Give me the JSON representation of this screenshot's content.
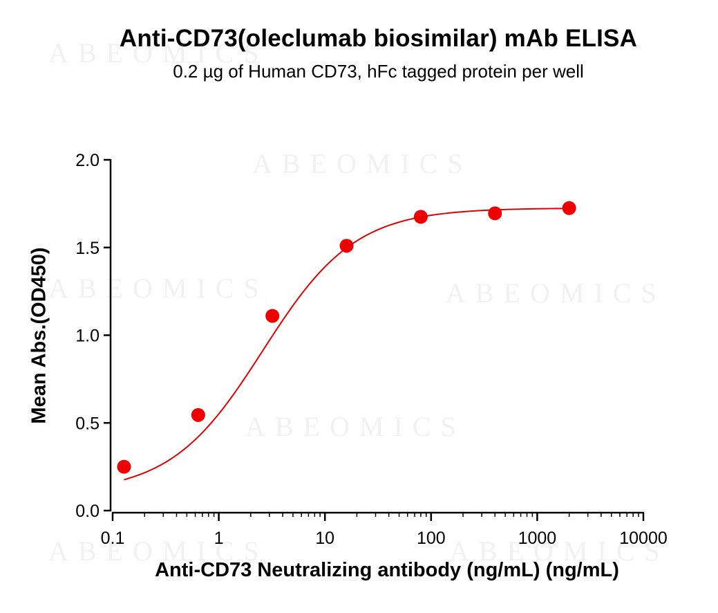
{
  "watermark_text": "ABEOMICS",
  "chart_data": {
    "type": "scatter",
    "title": "Anti-CD73(oleclumab biosimilar) mAb ELISA",
    "subtitle": "0.2 µg of Human CD73, hFc tagged protein per well",
    "xlabel": "Anti-CD73 Neutralizing antibody (ng/mL) (ng/mL)",
    "ylabel": "Mean Abs.(OD450)",
    "x_scale": "log",
    "xlim": [
      0.1,
      10000
    ],
    "ylim": [
      0.0,
      2.0
    ],
    "x_ticks": [
      0.1,
      1,
      10,
      100,
      1000,
      10000
    ],
    "x_tick_labels": [
      "0.1",
      "1",
      "10",
      "100",
      "1000",
      "10000"
    ],
    "y_ticks": [
      0.0,
      0.5,
      1.0,
      1.5,
      2.0
    ],
    "y_tick_labels": [
      "0.0",
      "0.5",
      "1.0",
      "1.5",
      "2.0"
    ],
    "grid": false,
    "marker_color": "#ee0000",
    "curve_color": "#dd0000",
    "series": [
      {
        "x": [
          0.128,
          0.64,
          3.2,
          16,
          80,
          400,
          2000
        ],
        "y": [
          0.25,
          0.545,
          1.11,
          1.51,
          1.675,
          1.695,
          1.725
        ],
        "fit": "4PL",
        "fit_params": {
          "bottom": 0.1,
          "top": 1.725,
          "ec50": 2.6,
          "hill": 1.0
        }
      }
    ]
  }
}
